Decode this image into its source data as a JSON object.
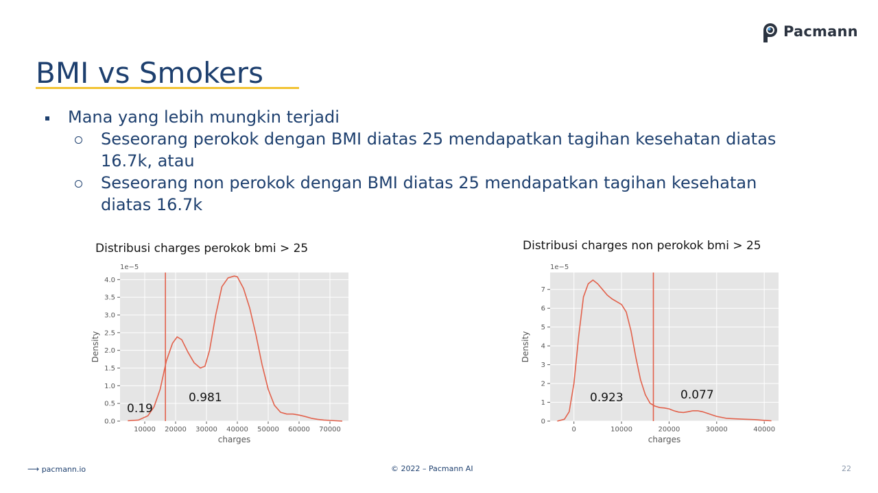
{
  "logo": {
    "text": "Pacmann"
  },
  "slide": {
    "title": "BMI vs Smokers",
    "bullet_main": "Mana yang lebih mungkin terjadi",
    "sub_bullets": [
      "Seseorang perokok dengan BMI diatas 25 mendapatkan tagihan kesehatan diatas 16.7k, atau",
      "Seseorang non perokok dengan BMI diatas 25 mendapatkan tagihan kesehatan diatas 16.7k"
    ]
  },
  "footer": {
    "site": "pacmann.io",
    "copyright": "© 2022 – Pacmann AI",
    "page": "22"
  },
  "colors": {
    "title": "#1d3f6e",
    "underline": "#f2c230",
    "line": "#e2604a",
    "plot_bg": "#e5e5e5",
    "grid": "#ffffff"
  },
  "chart_data": [
    {
      "type": "line",
      "title": "Distribusi charges perokok bmi > 25",
      "xlabel": "charges",
      "ylabel": "Density",
      "scale_label": "1e−5",
      "xlim": [
        2000,
        76000
      ],
      "ylim": [
        0,
        4.2
      ],
      "xticks": [
        10000,
        20000,
        30000,
        40000,
        50000,
        60000,
        70000
      ],
      "yticks": [
        0.0,
        0.5,
        1.0,
        1.5,
        2.0,
        2.5,
        3.0,
        3.5,
        4.0
      ],
      "ytick_labels": [
        "0.0",
        "0.5",
        "1.0",
        "1.5",
        "2.0",
        "2.5",
        "3.0",
        "3.5",
        "4.0"
      ],
      "grid": true,
      "threshold_x": 16700,
      "x": [
        4500,
        8000,
        11000,
        13000,
        15000,
        17000,
        19000,
        20500,
        22000,
        24000,
        26000,
        28000,
        29500,
        31000,
        33000,
        35000,
        37000,
        39000,
        40000,
        42000,
        44000,
        46000,
        48000,
        50000,
        52000,
        54000,
        56000,
        58000,
        60000,
        62000,
        64000,
        66000,
        68000,
        70000,
        72000,
        74000
      ],
      "y": [
        0.01,
        0.03,
        0.15,
        0.4,
        0.9,
        1.7,
        2.2,
        2.38,
        2.3,
        1.95,
        1.65,
        1.5,
        1.55,
        2.0,
        3.0,
        3.8,
        4.05,
        4.1,
        4.08,
        3.75,
        3.2,
        2.45,
        1.6,
        0.9,
        0.45,
        0.25,
        0.2,
        0.2,
        0.17,
        0.13,
        0.08,
        0.05,
        0.03,
        0.02,
        0.01,
        0.0
      ],
      "annotations": [
        "0.19",
        "0.981"
      ]
    },
    {
      "type": "line",
      "title": "Distribusi charges non perokok bmi > 25",
      "xlabel": "charges",
      "ylabel": "Density",
      "scale_label": "1e−5",
      "xlim": [
        -5000,
        43000
      ],
      "ylim": [
        0,
        7.9
      ],
      "xticks": [
        0,
        10000,
        20000,
        30000,
        40000
      ],
      "yticks": [
        0,
        1,
        2,
        3,
        4,
        5,
        6,
        7
      ],
      "ytick_labels": [
        "0",
        "1",
        "2",
        "3",
        "4",
        "5",
        "6",
        "7"
      ],
      "grid": true,
      "threshold_x": 16700,
      "x": [
        -3500,
        -2000,
        -1000,
        0,
        1000,
        2000,
        3000,
        4000,
        5000,
        6000,
        7000,
        8000,
        9000,
        10000,
        11000,
        12000,
        13000,
        14000,
        15000,
        16000,
        17000,
        18000,
        19000,
        20000,
        21000,
        22000,
        23000,
        24000,
        25000,
        26000,
        27000,
        28000,
        29000,
        30000,
        32000,
        34000,
        36000,
        38000,
        40000,
        41500
      ],
      "y": [
        0.0,
        0.1,
        0.5,
        2.0,
        4.5,
        6.6,
        7.3,
        7.5,
        7.3,
        7.0,
        6.7,
        6.5,
        6.35,
        6.2,
        5.8,
        4.8,
        3.4,
        2.2,
        1.4,
        0.95,
        0.8,
        0.72,
        0.7,
        0.65,
        0.55,
        0.48,
        0.46,
        0.5,
        0.55,
        0.55,
        0.5,
        0.42,
        0.33,
        0.25,
        0.15,
        0.12,
        0.1,
        0.08,
        0.04,
        0.02
      ],
      "annotations": [
        "0.923",
        "0.077"
      ]
    }
  ]
}
